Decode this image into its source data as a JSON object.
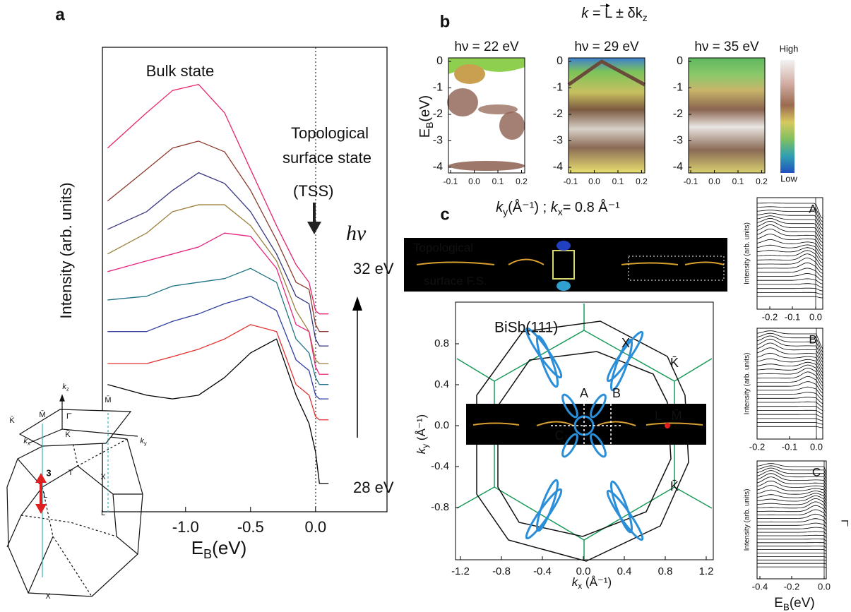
{
  "chart_data": {
    "type": "line",
    "panel_label": "a",
    "y_label": "Intensity (arb. units)",
    "x_label": [
      "E",
      "B",
      "(eV)"
    ],
    "annotations": [
      "Bulk state",
      "Topological",
      "surface state",
      "(TSS)",
      "hν",
      "32 eV",
      "28 eV"
    ],
    "x": [
      -1.6,
      -1.3,
      -1.1,
      -0.9,
      -0.7,
      -0.5,
      -0.3,
      -0.15,
      -0.05,
      0.0,
      0.03,
      0.1
    ],
    "xlim": [
      -1.64,
      0.55
    ],
    "ylim": [
      0,
      100
    ],
    "xticks": [
      {
        "value": -1,
        "label": "-1.0"
      },
      {
        "value": -0.5,
        "label": "-0.5"
      },
      {
        "value": 0,
        "label": "0.0"
      }
    ],
    "series": [
      {
        "color": "#e8246f",
        "values": [
          78.3,
          85.9,
          90.7,
          92.0,
          85.9,
          73.7,
          61.6,
          53.2,
          49.4,
          43.3,
          42.6,
          42.6
        ]
      },
      {
        "color": "#8a3b2c",
        "values": [
          66.9,
          73.7,
          78.3,
          79.8,
          77.5,
          69.2,
          58.5,
          49.4,
          47.9,
          40.3,
          38.8,
          38.8
        ]
      },
      {
        "color": "#35357f",
        "values": [
          60.8,
          64.6,
          69.2,
          73.0,
          70.7,
          64.6,
          55.5,
          46.4,
          44.8,
          37.2,
          35.7,
          35.7
        ]
      },
      {
        "color": "#9c7f3d",
        "values": [
          55.5,
          60.0,
          64.6,
          66.1,
          66.1,
          61.6,
          54.0,
          43.3,
          38.8,
          32.7,
          31.9,
          31.9
        ]
      },
      {
        "color": "#e8247c",
        "values": [
          51.7,
          54.0,
          55.5,
          57.0,
          60.0,
          59.3,
          52.4,
          40.3,
          38.8,
          31.2,
          29.6,
          29.6
        ]
      },
      {
        "color": "#1f7385",
        "values": [
          45.6,
          46.4,
          48.6,
          49.4,
          50.2,
          52.4,
          49.4,
          37.2,
          34.2,
          28.9,
          27.4,
          27.4
        ]
      },
      {
        "color": "#2f3fa0",
        "values": [
          38.8,
          38.8,
          41.0,
          42.6,
          44.8,
          46.4,
          43.3,
          32.7,
          30.4,
          25.1,
          24.3,
          24.3
        ]
      },
      {
        "color": "#e33030",
        "values": [
          31.9,
          31.9,
          33.4,
          35.0,
          37.2,
          40.3,
          38.8,
          27.4,
          25.1,
          20.5,
          19.8,
          19.8
        ]
      },
      {
        "color": "#000000",
        "values": [
          27.4,
          25.1,
          24.3,
          25.1,
          28.9,
          34.2,
          37.2,
          25.1,
          19.0,
          12.9,
          6.1,
          6.1
        ]
      }
    ]
  },
  "panel_b": {
    "label": "b",
    "title": [
      "k",
      " = L ± δk",
      "z"
    ],
    "maps": [
      "hν = 22 eV",
      "hν = 29 eV",
      "hν = 35 eV"
    ],
    "yticks": [
      "0",
      "-1",
      "-2",
      "-3",
      "-4"
    ],
    "xticks": [
      "-0.1",
      "0.0",
      "0.1",
      "0.2"
    ],
    "y_label": [
      "E",
      "B",
      "(eV)"
    ],
    "colorbar": [
      "High",
      "Low"
    ],
    "x_label": [
      "k",
      "y",
      "(Å⁻¹)  ;  ",
      "k",
      "x",
      "= 0.8 Å⁻¹"
    ]
  },
  "panel_c": {
    "label": "c",
    "strip_text": [
      "Topological",
      "surface F.S."
    ],
    "bz_title": "BiSb(111)",
    "points": [
      "A",
      "B",
      "C",
      "L",
      "M̄",
      "X",
      "K̄",
      "K̄"
    ],
    "xticks": [
      "-1.2",
      "-0.8",
      "-0.4",
      "0.0",
      "0.4",
      "0.8",
      "1.2"
    ],
    "yticks": [
      "0.8",
      "0.4",
      "0.0",
      "-0.4",
      "-0.8"
    ],
    "x_label": [
      "k",
      "x",
      " (Å⁻¹)"
    ],
    "y_label": [
      "k",
      "y",
      " (Å⁻¹)"
    ],
    "edc": [
      {
        "tag": "A",
        "xticks": [
          "-0.2",
          "-0.1",
          "0.0"
        ],
        "y_label": "Intensity (arb. units)"
      },
      {
        "tag": "B",
        "xticks": [
          "-0.2",
          "-0.1",
          "0.0"
        ],
        "y_label": "Intensity (arb. units)"
      },
      {
        "tag": "C",
        "xticks": [
          "-0.4",
          "-0.2",
          "0.0"
        ],
        "y_label": "Intensity (arb. units)",
        "side": "Γ̄"
      }
    ],
    "edc_x_label": [
      "E",
      "B",
      "(eV)"
    ]
  },
  "bz3d": {
    "kz": [
      "k",
      "z"
    ],
    "kx": [
      "k",
      "x"
    ],
    "ky": [
      "k",
      "y"
    ],
    "labels": [
      "Γ̄",
      "M̄",
      "M̄",
      "K̄",
      "K̄",
      "T",
      "X",
      "3",
      "L",
      "L",
      "X"
    ]
  }
}
